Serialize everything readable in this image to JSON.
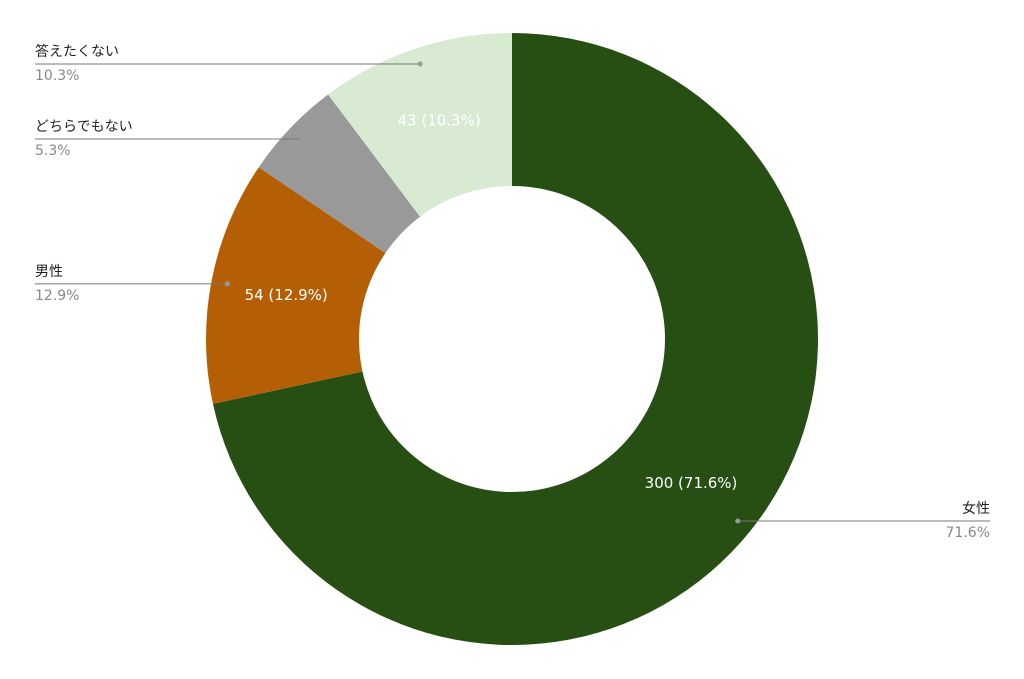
{
  "chart_data": {
    "type": "donut",
    "categories": [
      "女性",
      "男性",
      "どちらでもない",
      "答えたくない"
    ],
    "values": [
      300,
      54,
      22,
      43
    ],
    "value_labels": [
      "300 (71.6%)",
      "54 (12.9%)",
      null,
      "43 (10.3%)"
    ],
    "percent_labels": [
      "71.6%",
      "12.9%",
      "5.3%",
      "10.3%"
    ],
    "colors": [
      "#274e13",
      "#b45f06",
      "#999999",
      "#d9ead3"
    ],
    "value_label_colors": [
      "#ffffff",
      "#ffffff",
      null,
      "#ffffff"
    ]
  }
}
